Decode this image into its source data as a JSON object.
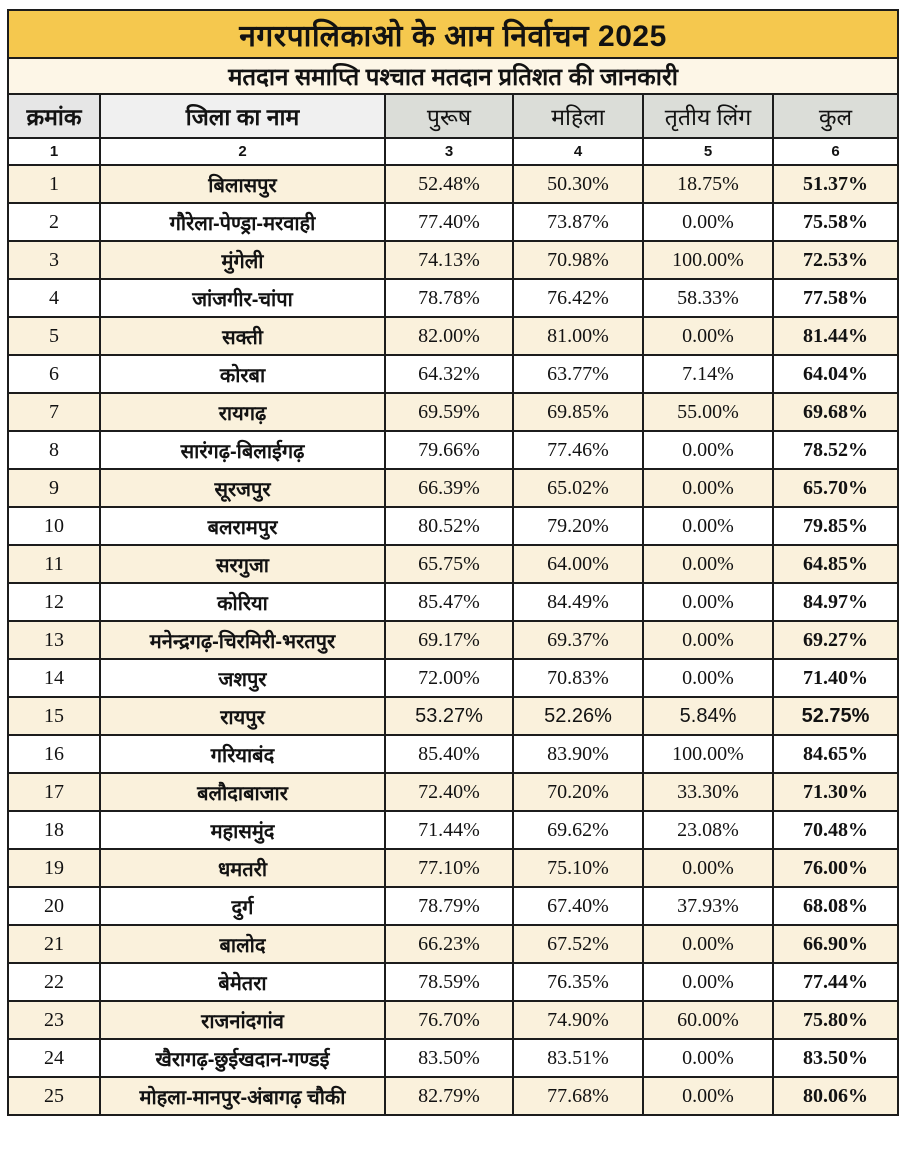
{
  "title": "नगरपालिकाओ  के आम  निर्वाचन 2025",
  "subtitle": "मतदान समाप्ति पश्चात मतदान प्रतिशत की जानकारी",
  "columns": {
    "serial": "क्रमांक",
    "district": "जिला का नाम",
    "male": "पुरूष",
    "female": "महिला",
    "third_gender": "तृतीय लिंग",
    "total": "कुल"
  },
  "column_numbers": [
    "1",
    "2",
    "3",
    "4",
    "5",
    "6"
  ],
  "colors": {
    "title_bg": "#F5C84E",
    "subtitle_bg": "#FDF6E7",
    "header_serial_bg": "#E6E6E6",
    "header_district_bg": "#F0F0F0",
    "header_numeric_bg": "#DBDDD8",
    "row_alt_bg": "#FAF1DC",
    "row_bg": "#FFFFFF",
    "border": "#1C1C1C",
    "text": "#121212"
  },
  "rows": [
    {
      "serial": "1",
      "district": "बिलासपुर",
      "male": "52.48%",
      "female": "50.30%",
      "third_gender": "18.75%",
      "total": "51.37%"
    },
    {
      "serial": "2",
      "district": "गौरेला-पेण्ड्रा-मरवाही",
      "male": "77.40%",
      "female": "73.87%",
      "third_gender": "0.00%",
      "total": "75.58%"
    },
    {
      "serial": "3",
      "district": "मुंगेली",
      "male": "74.13%",
      "female": "70.98%",
      "third_gender": "100.00%",
      "total": "72.53%"
    },
    {
      "serial": "4",
      "district": "जांजगीर-चांपा",
      "male": "78.78%",
      "female": "76.42%",
      "third_gender": "58.33%",
      "total": "77.58%"
    },
    {
      "serial": "5",
      "district": "सक्ती",
      "male": "82.00%",
      "female": "81.00%",
      "third_gender": "0.00%",
      "total": "81.44%"
    },
    {
      "serial": "6",
      "district": "कोरबा",
      "male": "64.32%",
      "female": "63.77%",
      "third_gender": "7.14%",
      "total": "64.04%"
    },
    {
      "serial": "7",
      "district": "रायगढ़",
      "male": "69.59%",
      "female": "69.85%",
      "third_gender": "55.00%",
      "total": "69.68%"
    },
    {
      "serial": "8",
      "district": "सारंगढ़-बिलाईगढ़",
      "male": "79.66%",
      "female": "77.46%",
      "third_gender": "0.00%",
      "total": "78.52%"
    },
    {
      "serial": "9",
      "district": "सूरजपुर",
      "male": "66.39%",
      "female": "65.02%",
      "third_gender": "0.00%",
      "total": "65.70%"
    },
    {
      "serial": "10",
      "district": "बलरामपुर",
      "male": "80.52%",
      "female": "79.20%",
      "third_gender": "0.00%",
      "total": "79.85%"
    },
    {
      "serial": "11",
      "district": "सरगुजा",
      "male": "65.75%",
      "female": "64.00%",
      "third_gender": "0.00%",
      "total": "64.85%"
    },
    {
      "serial": "12",
      "district": "कोरिया",
      "male": "85.47%",
      "female": "84.49%",
      "third_gender": "0.00%",
      "total": "84.97%"
    },
    {
      "serial": "13",
      "district": "मनेन्द्रगढ़-चिरमिरी-भरतपुर",
      "male": "69.17%",
      "female": "69.37%",
      "third_gender": "0.00%",
      "total": "69.27%"
    },
    {
      "serial": "14",
      "district": "जशपुर",
      "male": "72.00%",
      "female": "70.83%",
      "third_gender": "0.00%",
      "total": "71.40%"
    },
    {
      "serial": "15",
      "district": "रायपुर",
      "male": "53.27%",
      "female": "52.26%",
      "third_gender": "5.84%",
      "total": "52.75%"
    },
    {
      "serial": "16",
      "district": "गरियाबंद",
      "male": "85.40%",
      "female": "83.90%",
      "third_gender": "100.00%",
      "total": "84.65%"
    },
    {
      "serial": "17",
      "district": "बलौदाबाजार",
      "male": "72.40%",
      "female": "70.20%",
      "third_gender": "33.30%",
      "total": "71.30%"
    },
    {
      "serial": "18",
      "district": "महासमुंद",
      "male": "71.44%",
      "female": "69.62%",
      "third_gender": "23.08%",
      "total": "70.48%"
    },
    {
      "serial": "19",
      "district": "धमतरी",
      "male": "77.10%",
      "female": "75.10%",
      "third_gender": "0.00%",
      "total": "76.00%"
    },
    {
      "serial": "20",
      "district": "दुर्ग",
      "male": "78.79%",
      "female": "67.40%",
      "third_gender": "37.93%",
      "total": "68.08%"
    },
    {
      "serial": "21",
      "district": "बालोद",
      "male": "66.23%",
      "female": "67.52%",
      "third_gender": "0.00%",
      "total": "66.90%"
    },
    {
      "serial": "22",
      "district": "बेमेतरा",
      "male": "78.59%",
      "female": "76.35%",
      "third_gender": "0.00%",
      "total": "77.44%"
    },
    {
      "serial": "23",
      "district": "राजनांदगांव",
      "male": "76.70%",
      "female": "74.90%",
      "third_gender": "60.00%",
      "total": "75.80%"
    },
    {
      "serial": "24",
      "district": "खैरागढ़-छुईखदान-गण्डई",
      "male": "83.50%",
      "female": "83.51%",
      "third_gender": "0.00%",
      "total": "83.50%"
    },
    {
      "serial": "25",
      "district": "मोहला-मानपुर-अंबागढ़ चौकी",
      "male": "82.79%",
      "female": "77.68%",
      "third_gender": "0.00%",
      "total": "80.06%"
    }
  ]
}
